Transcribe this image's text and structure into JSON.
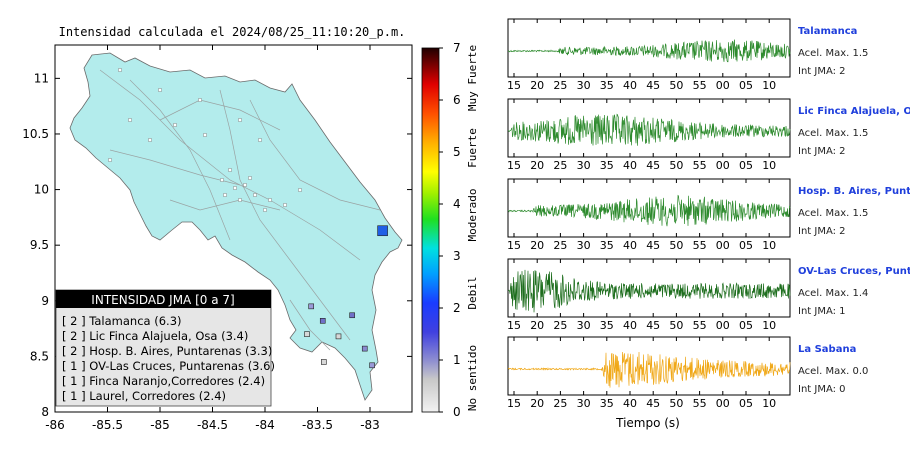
{
  "map": {
    "title": "Intensidad calculada el 2024/08/25_11:10:20_p.m.",
    "x_ticks": [
      "-86",
      "-85.5",
      "-85",
      "-84.5",
      "-84",
      "-83.5",
      "-83"
    ],
    "y_ticks": [
      "11",
      "10.5",
      "10",
      "9.5",
      "9",
      "8.5",
      "8"
    ],
    "xlim": [
      -86,
      -82.6
    ],
    "ylim": [
      8,
      11.3
    ],
    "legend_title": "INTENSIDAD JMA [0 a 7]",
    "legend_items": [
      "[ 2 ] Talamanca (6.3)",
      "[ 2 ] Lic Finca Alajuela, Osa (3.4)",
      "[ 2 ] Hosp. B. Aires, Puntarenas (3.3)",
      "[ 1 ] OV-Las Cruces, Puntarenas (3.6)",
      "[ 1 ] Finca Naranjo,Corredores (2.4)",
      "[ 1 ] Laurel, Corredores (2.4)"
    ],
    "stations": [
      {
        "lon": -82.88,
        "lat": 9.63,
        "level": 4,
        "color": "#1f5fe6"
      },
      {
        "lon": -83.45,
        "lat": 8.82,
        "level": 1,
        "color": "#7070c8"
      },
      {
        "lon": -83.17,
        "lat": 8.87,
        "level": 1,
        "color": "#7070c8"
      },
      {
        "lon": -83.05,
        "lat": 8.57,
        "level": 1,
        "color": "#8a8ad0"
      },
      {
        "lon": -82.98,
        "lat": 8.42,
        "level": 1,
        "color": "#9a9ad8"
      },
      {
        "lon": -83.56,
        "lat": 8.95,
        "level": 1,
        "color": "#9a9ad8"
      },
      {
        "lon": -83.6,
        "lat": 8.7,
        "level": 0,
        "color": "#d8d8d8"
      },
      {
        "lon": -83.3,
        "lat": 8.68,
        "level": 0,
        "color": "#d8d8d8"
      },
      {
        "lon": -83.44,
        "lat": 8.45,
        "level": 0,
        "color": "#d8d8d8"
      }
    ]
  },
  "colorbar": {
    "ticks": [
      "0",
      "1",
      "2",
      "3",
      "4",
      "5",
      "6",
      "7"
    ],
    "labels": [
      "No sentido",
      "Debil",
      "Moderado",
      "Fuerte",
      "Muy Fuerte"
    ]
  },
  "seismograms": {
    "x_tick_labels": [
      "15",
      "20",
      "25",
      "30",
      "35",
      "40",
      "45",
      "50",
      "55",
      "00",
      "05",
      "10"
    ],
    "xlabel": "Tiempo (s)",
    "traces": [
      {
        "name": "Talamanca",
        "accel": "Acel. Max. 1.5",
        "jma": "Int JMA: 2",
        "color": "#2e8b2e",
        "onset": 0.17,
        "peak": 0.77,
        "amp": 0.45,
        "decay": 0.6
      },
      {
        "name": "Lic Finca Alajuela, Osa",
        "accel": "Acel. Max. 1.5",
        "jma": "Int JMA: 2",
        "color": "#2e8b2e",
        "onset": 0.0,
        "peak": 0.35,
        "amp": 0.65,
        "decay": 0.8
      },
      {
        "name": "Hosp. B. Aires, Puntare",
        "accel": "Acel. Max. 1.5",
        "jma": "Int JMA: 2",
        "color": "#2e8b2e",
        "onset": 0.08,
        "peak": 0.6,
        "amp": 0.6,
        "decay": 0.7
      },
      {
        "name": "OV-Las Cruces, Puntar",
        "accel": "Acel. Max. 1.4",
        "jma": "Int JMA: 1",
        "color": "#1e6e1e",
        "onset": 0.0,
        "peak": 0.08,
        "amp": 0.85,
        "decay": 0.35
      },
      {
        "name": "La Sabana",
        "accel": "Acel. Max. 0.0",
        "jma": "Int JMA: 0",
        "color": "#f0a818",
        "onset": 0.33,
        "peak": 0.36,
        "amp": 0.75,
        "decay": 0.9
      }
    ]
  },
  "chart_data": {
    "type": "scatter",
    "title": "Intensidad calculada el 2024/08/25_11:10:20_p.m.",
    "xlim": [
      -86,
      -82.6
    ],
    "ylim": [
      8,
      11.3
    ],
    "colorbar_range": [
      0,
      7
    ]
  }
}
